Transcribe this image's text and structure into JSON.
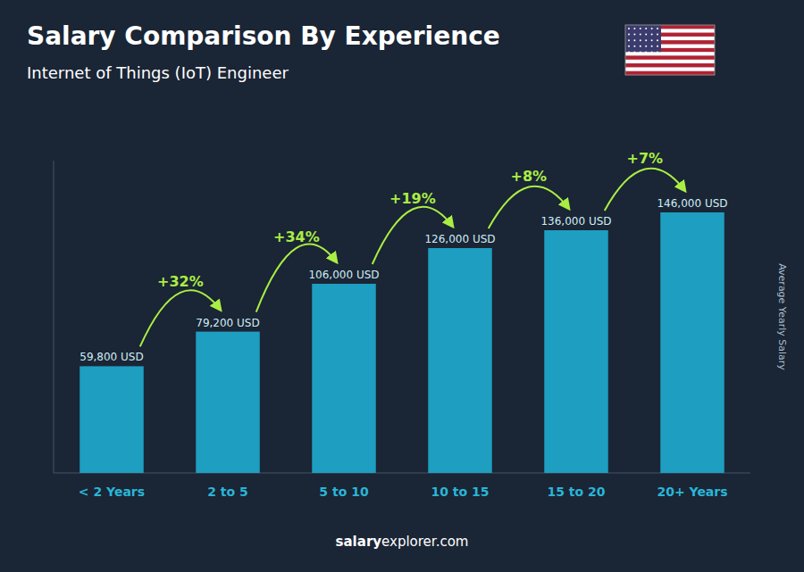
{
  "chart_data": {
    "type": "bar",
    "title": "Salary Comparison By Experience",
    "subtitle": "Internet of Things (IoT) Engineer",
    "ylabel": "Average Yearly Salary",
    "categories": [
      "< 2 Years",
      "2 to 5",
      "5 to 10",
      "10 to 15",
      "15 to 20",
      "20+ Years"
    ],
    "values": [
      59800,
      79200,
      106000,
      126000,
      136000,
      146000
    ],
    "value_labels": [
      "59,800 USD",
      "79,200 USD",
      "106,000 USD",
      "126,000 USD",
      "136,000 USD",
      "146,000 USD"
    ],
    "data_labels": true,
    "annotations": [
      "+32%",
      "+34%",
      "+19%",
      "+8%",
      "+7%"
    ],
    "footer": [
      "salary",
      "explorer.com"
    ],
    "color": "#1e9ec0",
    "ylim": [
      0,
      175000
    ],
    "grid": false,
    "tick_labels": "x"
  }
}
